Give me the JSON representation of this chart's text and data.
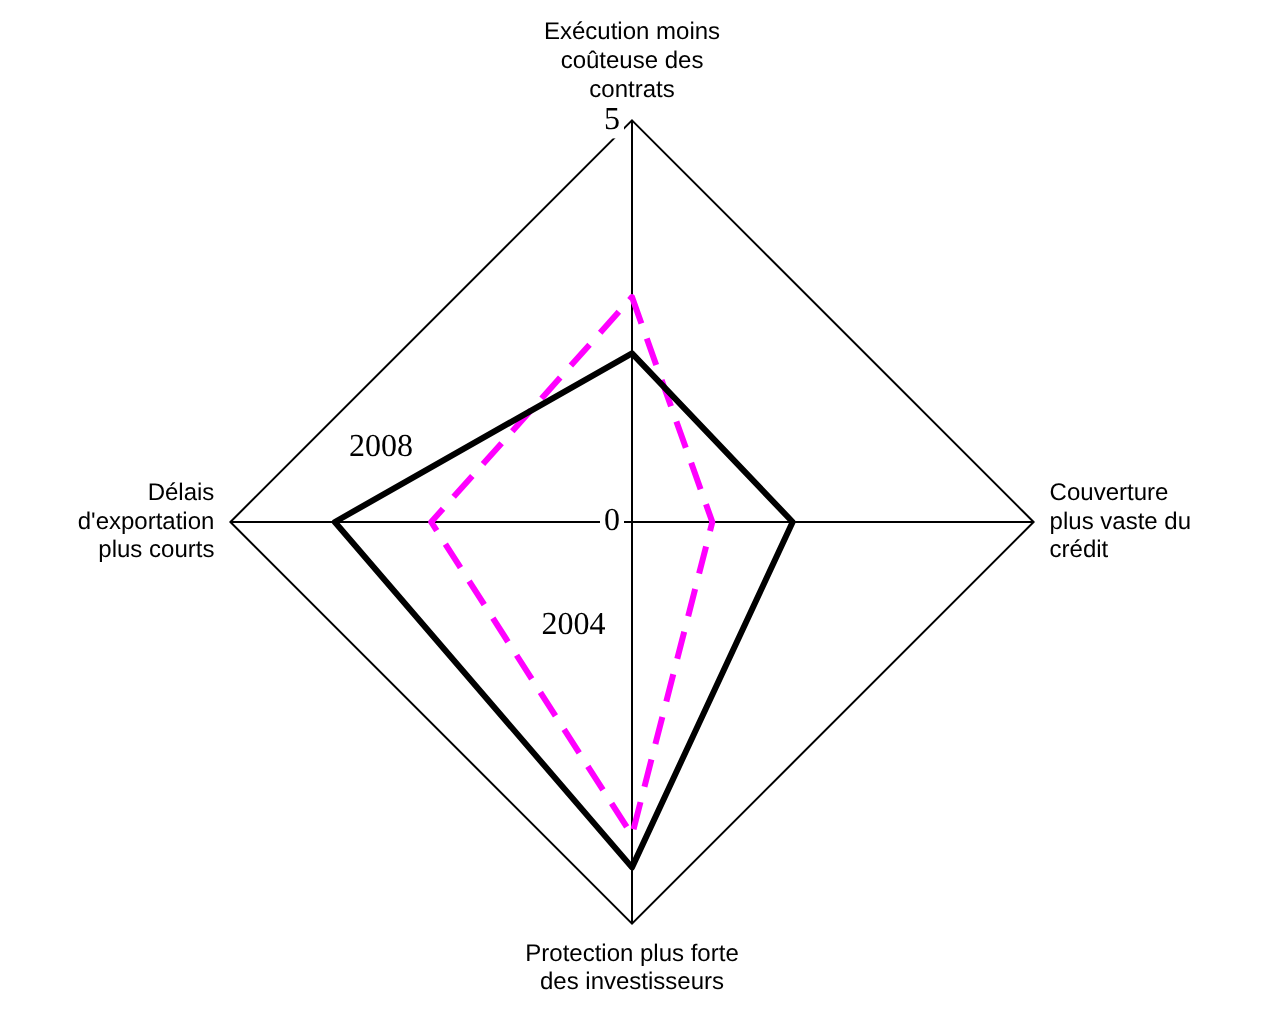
{
  "chart_data": {
    "type": "radar",
    "categories": [
      "Exécution moins\ncoûteuse des\ncontrats",
      "Couverture\nplus vaste du\ncrédit",
      "Protection plus forte\ndes investisseurs",
      "Délais\nd'exportation\nplus courts"
    ],
    "series": [
      {
        "name": "2008",
        "color": "#000000",
        "values": [
          2.1,
          2,
          4.3,
          3.7
        ],
        "line_style": "solid"
      },
      {
        "name": "2004",
        "color": "#ff00ff",
        "values": [
          2.8,
          1,
          3.9,
          2.5
        ],
        "line_style": "dashed"
      }
    ],
    "ylim": [
      0,
      5
    ],
    "yticks": [
      0,
      5
    ],
    "grid": true,
    "legend": false,
    "marker": "none"
  }
}
